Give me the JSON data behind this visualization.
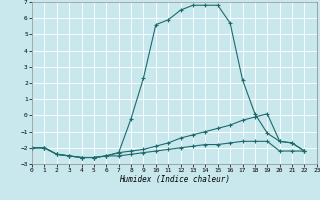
{
  "xlabel": "Humidex (Indice chaleur)",
  "xlim": [
    0,
    23
  ],
  "ylim": [
    -3,
    7
  ],
  "xticks": [
    0,
    1,
    2,
    3,
    4,
    5,
    6,
    7,
    8,
    9,
    10,
    11,
    12,
    13,
    14,
    15,
    16,
    17,
    18,
    19,
    20,
    21,
    22,
    23
  ],
  "yticks": [
    -3,
    -2,
    -1,
    0,
    1,
    2,
    3,
    4,
    5,
    6,
    7
  ],
  "bg_color": "#c8e8ee",
  "line_color": "#1b6b6b",
  "grid_color": "#ffffff",
  "series": [
    {
      "x": [
        0,
        1,
        2,
        3,
        4,
        5,
        6,
        7,
        8,
        9,
        10,
        11,
        12,
        13,
        14,
        15,
        16,
        17,
        18,
        19,
        20,
        21,
        22
      ],
      "y": [
        -2.0,
        -2.0,
        -2.4,
        -2.5,
        -2.6,
        -2.6,
        -2.5,
        -2.3,
        -0.2,
        2.3,
        5.6,
        5.9,
        6.5,
        6.8,
        6.8,
        6.8,
        5.7,
        2.2,
        0.1,
        -1.1,
        -1.6,
        -1.7,
        -2.2
      ]
    },
    {
      "x": [
        0,
        1,
        2,
        3,
        4,
        5,
        6,
        7,
        8,
        9,
        10,
        11,
        12,
        13,
        14,
        15,
        16,
        17,
        18,
        19,
        20,
        21,
        22
      ],
      "y": [
        -2.0,
        -2.0,
        -2.4,
        -2.5,
        -2.6,
        -2.6,
        -2.5,
        -2.3,
        -2.2,
        -2.1,
        -1.9,
        -1.7,
        -1.4,
        -1.2,
        -1.0,
        -0.8,
        -0.6,
        -0.3,
        -0.1,
        0.1,
        -1.6,
        -1.7,
        -2.2
      ]
    },
    {
      "x": [
        0,
        1,
        2,
        3,
        4,
        5,
        6,
        7,
        8,
        9,
        10,
        11,
        12,
        13,
        14,
        15,
        16,
        17,
        18,
        19,
        20,
        21,
        22
      ],
      "y": [
        -2.0,
        -2.0,
        -2.4,
        -2.5,
        -2.6,
        -2.6,
        -2.5,
        -2.5,
        -2.4,
        -2.3,
        -2.2,
        -2.1,
        -2.0,
        -1.9,
        -1.8,
        -1.8,
        -1.7,
        -1.6,
        -1.6,
        -1.6,
        -2.2,
        -2.2,
        -2.2
      ]
    }
  ]
}
